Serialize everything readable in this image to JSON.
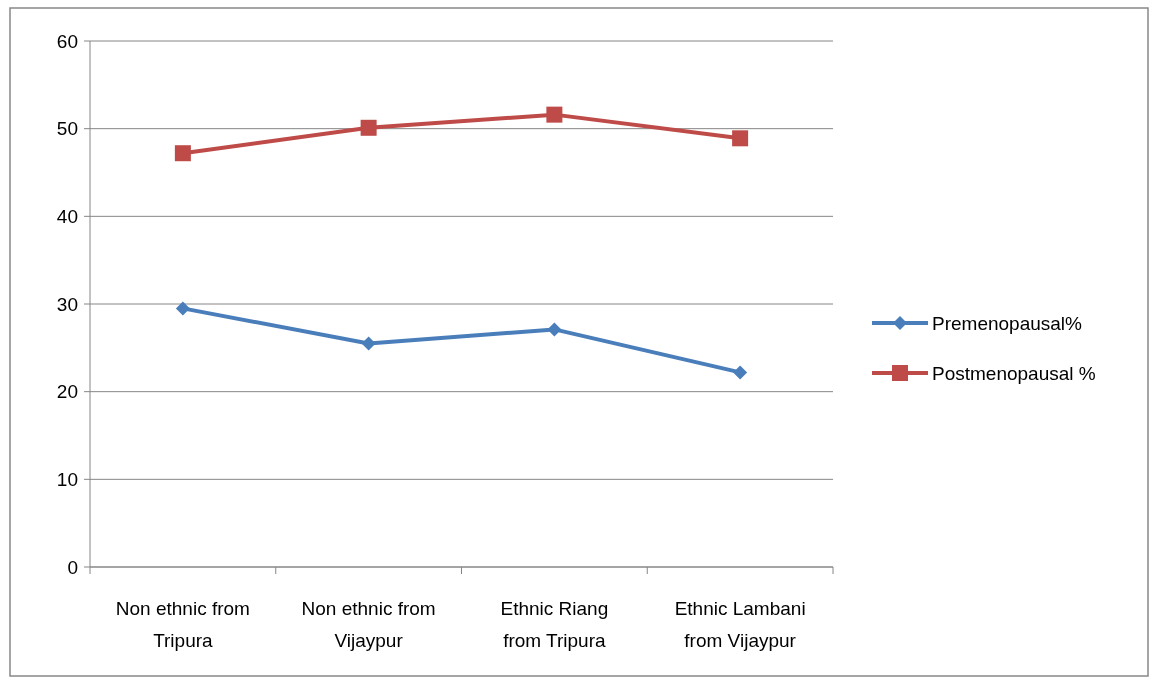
{
  "chart_data": {
    "type": "line",
    "categories": [
      "Non ethnic from Tripura",
      "Non ethnic from Vijaypur",
      "Ethnic Riang from Tripura",
      "Ethnic Lambani from Vijaypur"
    ],
    "series": [
      {
        "name": "Premenopausal%",
        "color": "#4a7ebb",
        "marker": "diamond",
        "values": [
          29.5,
          25.5,
          27.1,
          22.2
        ]
      },
      {
        "name": "Postmenopausal %",
        "color": "#be4b48",
        "marker": "square",
        "values": [
          47.2,
          50.1,
          51.6,
          48.9
        ]
      }
    ],
    "ylim": [
      0,
      60
    ],
    "yticks": [
      0,
      10,
      20,
      30,
      40,
      50,
      60
    ],
    "grid": "y",
    "legend": "right"
  }
}
